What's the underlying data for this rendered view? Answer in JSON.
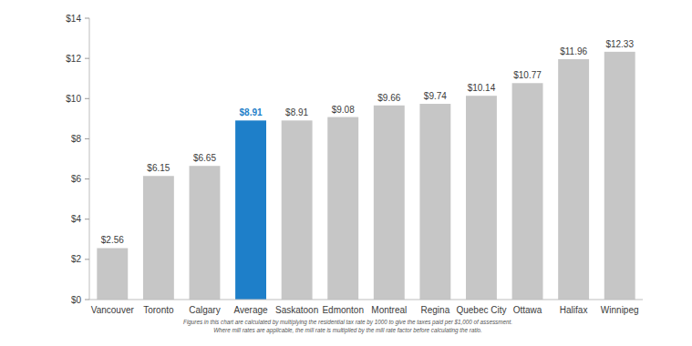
{
  "chart_data": {
    "type": "bar",
    "categories": [
      "Vancouver",
      "Toronto",
      "Calgary",
      "Average",
      "Saskatoon",
      "Edmonton",
      "Montreal",
      "Regina",
      "Quebec City",
      "Ottawa",
      "Halifax",
      "Winnipeg"
    ],
    "values": [
      2.56,
      6.15,
      6.65,
      8.91,
      8.91,
      9.08,
      9.66,
      9.74,
      10.14,
      10.77,
      11.96,
      12.33
    ],
    "value_labels": [
      "$2.56",
      "$6.15",
      "$6.65",
      "$8.91",
      "$8.91",
      "$9.08",
      "$9.66",
      "$9.74",
      "$10.14",
      "$10.77",
      "$11.96",
      "$12.33"
    ],
    "colors": [
      "#c6c6c6",
      "#c6c6c6",
      "#c6c6c6",
      "#1e7fc9",
      "#c6c6c6",
      "#c6c6c6",
      "#c6c6c6",
      "#c6c6c6",
      "#c6c6c6",
      "#c6c6c6",
      "#c6c6c6",
      "#c6c6c6"
    ],
    "ylim": [
      0,
      14
    ],
    "yticks": [
      {
        "value": 0,
        "label": "$0"
      },
      {
        "value": 2,
        "label": "$2"
      },
      {
        "value": 4,
        "label": "$4"
      },
      {
        "value": 6,
        "label": "$6"
      },
      {
        "value": 8,
        "label": "$8"
      },
      {
        "value": 10,
        "label": "$10"
      },
      {
        "value": 12,
        "label": "$12"
      },
      {
        "value": 14,
        "label": "$14"
      }
    ],
    "grid": false,
    "data_labels": true,
    "annotations": [
      "Figures in this chart are calculated by multiplying the residential tax rate by 1000 to give the taxes paid per $1,000 of assessment.",
      "Where mill rates are applicable, the mill rate is multiplied by the mill rate factor before calculating the ratio."
    ]
  }
}
